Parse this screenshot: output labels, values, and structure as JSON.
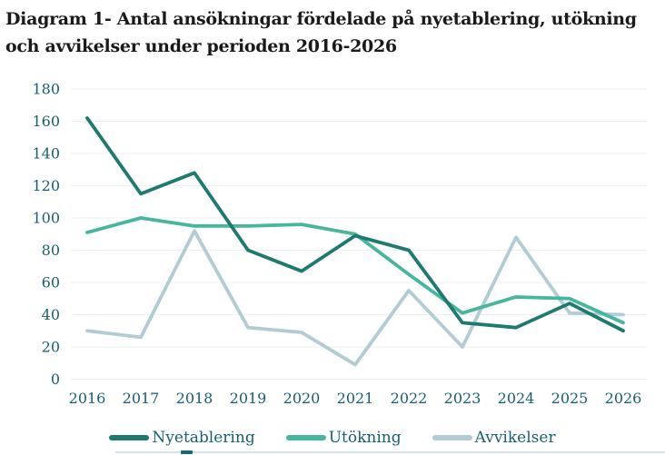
{
  "title_lines": [
    "Diagram 1- Antal ansökningar fördelade på nyetablering, utökning",
    "och avvikelser under perioden 2016-2026"
  ],
  "colors": {
    "title_text": "#1a1a1a",
    "axis_text": "#185e74",
    "gridline": "#eef0f1",
    "background": "#ffffff",
    "bottom_edge_light": "#d5e4e8",
    "bottom_edge_dark": "#156b77"
  },
  "chart_data": {
    "type": "line",
    "title": "Diagram 1- Antal ansökningar fördelade på nyetablering, utökning och avvikelser under perioden 2016-2026",
    "categories": [
      "2016",
      "2017",
      "2018",
      "2019",
      "2020",
      "2021",
      "2022",
      "2023",
      "2024",
      "2025",
      "2026"
    ],
    "series": [
      {
        "name": "Nyetablering",
        "color": "#1e7a6f",
        "values": [
          162,
          115,
          128,
          80,
          67,
          89,
          80,
          35,
          32,
          47,
          30
        ]
      },
      {
        "name": "Utökning",
        "color": "#46b69e",
        "values": [
          91,
          100,
          95,
          95,
          96,
          90,
          65,
          41,
          51,
          50,
          35
        ]
      },
      {
        "name": "Avvikelser",
        "color": "#b3cbd3",
        "values": [
          30,
          26,
          92,
          32,
          29,
          9,
          55,
          20,
          88,
          41,
          40
        ]
      }
    ],
    "xlabel": "",
    "ylabel": "",
    "ylim": [
      0,
      180
    ],
    "ytick_step": 20,
    "grid": "horizontal",
    "legend_position": "bottom"
  }
}
